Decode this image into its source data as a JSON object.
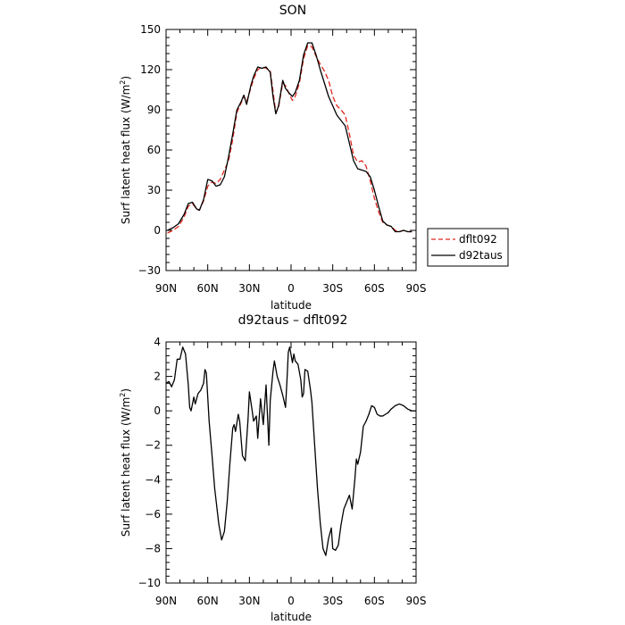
{
  "chart_data": [
    {
      "type": "line",
      "title": "SON",
      "xlabel": "latitude",
      "ylabel": "Surf latent heat flux",
      "ylabel_unit": "(W/m²)",
      "ylabel_unit_base": "(W/m",
      "ylabel_unit_sup": "2",
      "ylabel_unit_close": ")",
      "xlim": [
        90,
        -90
      ],
      "ylim": [
        -30,
        150
      ],
      "xticks": [
        90,
        60,
        30,
        0,
        -30,
        -60,
        -90
      ],
      "xtick_labels": [
        "90N",
        "60N",
        "30N",
        "0",
        "30S",
        "60S",
        "90S"
      ],
      "yticks": [
        -30,
        0,
        30,
        60,
        90,
        120,
        150
      ],
      "ytick_labels": [
        "−30",
        "0",
        "30",
        "60",
        "90",
        "120",
        "150"
      ],
      "legend": {
        "placement": "right, outside",
        "entries": [
          "dflt092",
          "d92taus"
        ]
      },
      "series": [
        {
          "name": "dflt092",
          "color": "#e0281e",
          "style": "dashed",
          "points": [
            [
              89,
              -2
            ],
            [
              85,
              0
            ],
            [
              81,
              3
            ],
            [
              77,
              10
            ],
            [
              74,
              18
            ],
            [
              71,
              20
            ],
            [
              68,
              16
            ],
            [
              66,
              15
            ],
            [
              63,
              22
            ],
            [
              60,
              33
            ],
            [
              57,
              36
            ],
            [
              54,
              35
            ],
            [
              51,
              38
            ],
            [
              48,
              45
            ],
            [
              45,
              52
            ],
            [
              42,
              68
            ],
            [
              39,
              88
            ],
            [
              36,
              95
            ],
            [
              34,
              100
            ],
            [
              32,
              96
            ],
            [
              29,
              106
            ],
            [
              27,
              113
            ],
            [
              24,
              120
            ],
            [
              21,
              122
            ],
            [
              18,
              121
            ],
            [
              15,
              119
            ],
            [
              13,
              104
            ],
            [
              11,
              88
            ],
            [
              9,
              92
            ],
            [
              6,
              110
            ],
            [
              4,
              108
            ],
            [
              1,
              101
            ],
            [
              -1,
              97
            ],
            [
              -3,
              100
            ],
            [
              -6,
              110
            ],
            [
              -9,
              128
            ],
            [
              -12,
              138
            ],
            [
              -15,
              137
            ],
            [
              -18,
              130
            ],
            [
              -21,
              124
            ],
            [
              -24,
              119
            ],
            [
              -27,
              112
            ],
            [
              -30,
              100
            ],
            [
              -33,
              93
            ],
            [
              -36,
              90
            ],
            [
              -39,
              86
            ],
            [
              -42,
              72
            ],
            [
              -45,
              56
            ],
            [
              -48,
              51
            ],
            [
              -51,
              52
            ],
            [
              -54,
              48
            ],
            [
              -57,
              37
            ],
            [
              -60,
              24
            ],
            [
              -63,
              14
            ],
            [
              -66,
              6
            ],
            [
              -69,
              4
            ],
            [
              -72,
              3
            ],
            [
              -75,
              0
            ],
            [
              -78,
              -1
            ],
            [
              -81,
              0
            ],
            [
              -84,
              -1
            ],
            [
              -87,
              -1
            ]
          ]
        },
        {
          "name": "d92taus",
          "color": "#000000",
          "style": "solid",
          "points": [
            [
              89,
              0
            ],
            [
              85,
              2
            ],
            [
              81,
              5
            ],
            [
              77,
              12
            ],
            [
              74,
              20
            ],
            [
              71,
              21
            ],
            [
              68,
              16
            ],
            [
              66,
              15
            ],
            [
              63,
              23
            ],
            [
              60,
              38
            ],
            [
              57,
              37
            ],
            [
              54,
              33
            ],
            [
              51,
              34
            ],
            [
              48,
              40
            ],
            [
              45,
              55
            ],
            [
              42,
              72
            ],
            [
              39,
              90
            ],
            [
              36,
              96
            ],
            [
              34,
              101
            ],
            [
              32,
              94
            ],
            [
              29,
              108
            ],
            [
              27,
              115
            ],
            [
              24,
              122
            ],
            [
              21,
              121
            ],
            [
              18,
              122
            ],
            [
              15,
              118
            ],
            [
              13,
              100
            ],
            [
              11,
              87
            ],
            [
              9,
              93
            ],
            [
              6,
              112
            ],
            [
              4,
              106
            ],
            [
              1,
              102
            ],
            [
              -1,
              100
            ],
            [
              -3,
              103
            ],
            [
              -6,
              112
            ],
            [
              -9,
              131
            ],
            [
              -12,
              140
            ],
            [
              -15,
              140
            ],
            [
              -18,
              131
            ],
            [
              -21,
              120
            ],
            [
              -24,
              110
            ],
            [
              -27,
              100
            ],
            [
              -30,
              93
            ],
            [
              -33,
              86
            ],
            [
              -36,
              82
            ],
            [
              -39,
              78
            ],
            [
              -42,
              65
            ],
            [
              -45,
              52
            ],
            [
              -48,
              46
            ],
            [
              -51,
              45
            ],
            [
              -54,
              44
            ],
            [
              -57,
              40
            ],
            [
              -60,
              30
            ],
            [
              -63,
              18
            ],
            [
              -66,
              7
            ],
            [
              -69,
              4
            ],
            [
              -72,
              3
            ],
            [
              -75,
              -1
            ],
            [
              -78,
              -1
            ],
            [
              -81,
              0
            ],
            [
              -84,
              -1
            ],
            [
              -87,
              -1
            ]
          ]
        }
      ]
    },
    {
      "type": "line",
      "title": "d92taus – dflt092",
      "xlabel": "latitude",
      "ylabel": "Surf latent heat flux",
      "ylabel_unit": "(W/m²)",
      "ylabel_unit_base": "(W/m",
      "ylabel_unit_sup": "2",
      "ylabel_unit_close": ")",
      "xlim": [
        90,
        -90
      ],
      "ylim": [
        -10,
        4
      ],
      "xticks": [
        90,
        60,
        30,
        0,
        -30,
        -60,
        -90
      ],
      "xtick_labels": [
        "90N",
        "60N",
        "30N",
        "0",
        "30S",
        "60S",
        "90S"
      ],
      "yticks": [
        -10,
        -8,
        -6,
        -4,
        -2,
        0,
        2,
        4
      ],
      "ytick_labels": [
        "−10",
        "−8",
        "−6",
        "−4",
        "−2",
        "0",
        "2",
        "4"
      ],
      "series": [
        {
          "name": "",
          "color": "#000000",
          "style": "solid",
          "points": [
            [
              90,
              1.6
            ],
            [
              88,
              1.7
            ],
            [
              86,
              1.4
            ],
            [
              84,
              1.8
            ],
            [
              82,
              3.0
            ],
            [
              80,
              3.0
            ],
            [
              78,
              3.7
            ],
            [
              76,
              3.3
            ],
            [
              74,
              1.5
            ],
            [
              73,
              0.2
            ],
            [
              72,
              0.0
            ],
            [
              70,
              0.8
            ],
            [
              69,
              0.4
            ],
            [
              67,
              1.0
            ],
            [
              65,
              1.2
            ],
            [
              63,
              1.6
            ],
            [
              62,
              2.4
            ],
            [
              61,
              2.2
            ],
            [
              59,
              -0.6
            ],
            [
              57,
              -2.5
            ],
            [
              55,
              -4.5
            ],
            [
              52,
              -6.6
            ],
            [
              50,
              -7.5
            ],
            [
              48,
              -7.0
            ],
            [
              46,
              -5.3
            ],
            [
              44,
              -3.0
            ],
            [
              42,
              -1.0
            ],
            [
              41,
              -0.8
            ],
            [
              40,
              -1.2
            ],
            [
              38,
              -0.2
            ],
            [
              37,
              -0.6
            ],
            [
              35,
              -2.6
            ],
            [
              33,
              -2.9
            ],
            [
              31,
              -0.5
            ],
            [
              30,
              1.1
            ],
            [
              28,
              0.0
            ],
            [
              27,
              -0.6
            ],
            [
              25,
              -0.3
            ],
            [
              24,
              -1.6
            ],
            [
              22,
              0.7
            ],
            [
              20,
              -0.8
            ],
            [
              18,
              1.5
            ],
            [
              16,
              -2.0
            ],
            [
              15,
              0.6
            ],
            [
              13,
              2.3
            ],
            [
              12,
              2.9
            ],
            [
              10,
              2.0
            ],
            [
              8,
              1.5
            ],
            [
              6,
              0.9
            ],
            [
              4,
              0.2
            ],
            [
              3,
              1.7
            ],
            [
              2,
              3.4
            ],
            [
              1,
              3.7
            ],
            [
              -1,
              2.8
            ],
            [
              -2,
              3.3
            ],
            [
              -3,
              2.9
            ],
            [
              -5,
              2.7
            ],
            [
              -7,
              1.8
            ],
            [
              -8,
              0.8
            ],
            [
              -9,
              1.0
            ],
            [
              -10,
              2.4
            ],
            [
              -12,
              2.3
            ],
            [
              -14,
              1.2
            ],
            [
              -15,
              0.5
            ],
            [
              -17,
              -2.0
            ],
            [
              -19,
              -4.5
            ],
            [
              -21,
              -6.5
            ],
            [
              -23,
              -8.0
            ],
            [
              -25,
              -8.4
            ],
            [
              -27,
              -7.4
            ],
            [
              -29,
              -6.8
            ],
            [
              -30,
              -8.0
            ],
            [
              -32,
              -8.1
            ],
            [
              -34,
              -7.8
            ],
            [
              -36,
              -6.6
            ],
            [
              -38,
              -5.7
            ],
            [
              -40,
              -5.3
            ],
            [
              -42,
              -4.9
            ],
            [
              -44,
              -5.7
            ],
            [
              -46,
              -3.9
            ],
            [
              -47,
              -2.8
            ],
            [
              -48,
              -3.1
            ],
            [
              -50,
              -2.4
            ],
            [
              -52,
              -0.9
            ],
            [
              -54,
              -0.6
            ],
            [
              -56,
              -0.2
            ],
            [
              -58,
              0.3
            ],
            [
              -60,
              0.2
            ],
            [
              -62,
              -0.2
            ],
            [
              -64,
              -0.3
            ],
            [
              -66,
              -0.3
            ],
            [
              -68,
              -0.2
            ],
            [
              -70,
              -0.1
            ],
            [
              -72,
              0.1
            ],
            [
              -75,
              0.3
            ],
            [
              -78,
              0.4
            ],
            [
              -81,
              0.3
            ],
            [
              -84,
              0.1
            ],
            [
              -87,
              0.0
            ],
            [
              -90,
              0.0
            ]
          ]
        }
      ]
    }
  ]
}
